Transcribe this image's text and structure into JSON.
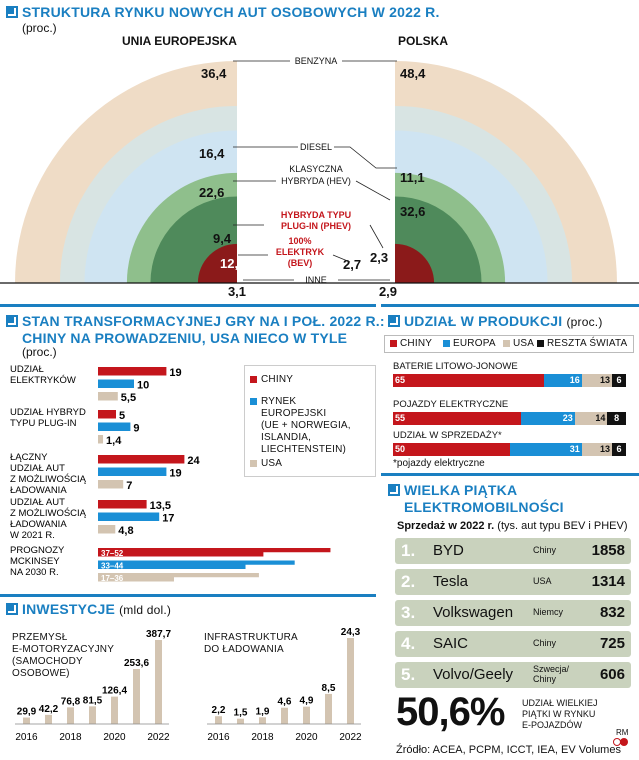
{
  "colors": {
    "accent": "#1a7fc1",
    "china": "#c4161c",
    "europe": "#1a8fd6",
    "usa": "#d3c4b1",
    "rest": "#111111",
    "petrol": "#efdcc6",
    "diesel": "#d8e4e3",
    "hev": "#cfe4f2",
    "phev": "#8fbf8c",
    "bev": "#4f8a5b",
    "other": "#8b1a1a"
  },
  "market": {
    "title": "STRUKTURA RYNKU NOWYCH AUT OSOBOWYCH W 2022 R.",
    "unit": "(proc.)",
    "left_label": "UNIA EUROPEJSKA",
    "right_label": "POLSKA",
    "cat_petrol": "BENZYNA",
    "cat_diesel": "DIESEL",
    "cat_hev_1": "KLASYCZNA",
    "cat_hev_2": "HYBRYDA (HEV)",
    "cat_phev_1": "HYBRYDA TYPU",
    "cat_phev_2": "PLUG-IN (PHEV)",
    "cat_bev_1": "100%",
    "cat_bev_2": "ELEKTRYK",
    "cat_bev_3": "(BEV)",
    "cat_other": "INNE"
  },
  "transform": {
    "title_1": "STAN TRANSFORMACYJNEJ GRY NA I POŁ. 2022 R.:",
    "title_2": "CHINY NA PROWADZENIU, USA NIECO W TYLE",
    "unit": "(proc.)",
    "groups": [
      {
        "label": [
          "UDZIAŁ",
          "ELEKTRYKÓW"
        ]
      },
      {
        "label": [
          "UDZIAŁ HYBRYD",
          "TYPU PLUG-IN"
        ]
      },
      {
        "label": [
          "ŁĄCZNY",
          "UDZIAŁ AUT",
          "Z MOŻLIWOŚCIĄ",
          "ŁADOWANIA"
        ]
      },
      {
        "label": [
          "UDZIAŁ AUT",
          "Z MOŻLIWOŚCIĄ",
          "ŁADOWANIA",
          "W 2021 R."
        ]
      },
      {
        "label": [
          "PROGNOZY",
          "MCKINSEY",
          "NA 2030 R."
        ]
      }
    ],
    "legend_china": "CHINY",
    "legend_eu": [
      "RYNEK",
      "EUROPEJSKI",
      "(UE + NORWEGIA,",
      "ISLANDIA,",
      "LIECHTENSTEIN)"
    ],
    "legend_usa": "USA"
  },
  "production": {
    "title": "UDZIAŁ W PRODUKCJI",
    "unit": "(proc.)",
    "legend": [
      "CHINY",
      "EUROPA",
      "USA",
      "RESZTA ŚWIATA"
    ],
    "rows": [
      {
        "label": "BATERIE LITOWO-JONOWE"
      },
      {
        "label": "POJAZDY ELEKTRYCZNE"
      },
      {
        "label": "UDZIAŁ W SPRZEDAŻY*"
      }
    ],
    "footnote": "*pojazdy elektryczne"
  },
  "top5": {
    "title_1": "WIELKA PIĄTKA",
    "title_2": "ELEKTROMOBILNOŚCI",
    "sales_bold": "Sprzedaż w 2022 r.",
    "sales_rest": "(tys. aut typu BEV i PHEV)",
    "ranks": [
      {
        "n": "1.",
        "name": "BYD",
        "country": "Chiny",
        "value": "1858"
      },
      {
        "n": "2.",
        "name": "Tesla",
        "country": "USA",
        "value": "1314"
      },
      {
        "n": "3.",
        "name": "Volkswagen",
        "country": "Niemcy",
        "value": "832"
      },
      {
        "n": "4.",
        "name": "SAIC",
        "country": "Chiny",
        "value": "725"
      },
      {
        "n": "5.",
        "name": "Volvo/Geely",
        "country": "Szwecja/ Chiny",
        "value": "606"
      }
    ],
    "big_value": "50,6%",
    "big_label": [
      "UDZIAŁ WIELKIEJ",
      "PIĄTKI W RYNKU",
      "E-POJAZDÓW"
    ]
  },
  "invest": {
    "title": "INWESTYCJE",
    "unit": "(mld dol.)",
    "left_label": [
      "PRZEMYSŁ",
      "E-MOTORYZACYJNY",
      "(SAMOCHODY",
      "OSOBOWE)"
    ],
    "right_label": [
      "INFRASTRUKTURA",
      "DO ŁADOWANIA"
    ]
  },
  "source": "Źródło: ACEA, PCPM, ICCT, IEA, EV Volumes",
  "logo": "RM",
  "chart_data": [
    {
      "type": "pie",
      "title": "STRUKTURA RYNKU NOWYCH AUT OSOBOWYCH W 2022 R.",
      "unit": "(proc.)",
      "categories": [
        "BENZYNA",
        "DIESEL",
        "KLASYCZNA HYBRYDA (HEV)",
        "HYBRYDA TYPU PLUG-IN (PHEV)",
        "100% ELEKTRYK (BEV)",
        "INNE"
      ],
      "series": [
        {
          "name": "UNIA EUROPEJSKA",
          "values": [
            36.4,
            16.4,
            22.6,
            9.4,
            12.1,
            3.1
          ],
          "labels": [
            "36,4",
            "16,4",
            "22,6",
            "9,4",
            "12,1",
            "3,1"
          ]
        },
        {
          "name": "POLSKA",
          "values": [
            48.4,
            11.1,
            32.6,
            2.3,
            2.7,
            2.9
          ],
          "labels": [
            "48,4",
            "11,1",
            "32,6",
            "2,3",
            "2,7",
            "2,9"
          ]
        }
      ]
    },
    {
      "type": "bar",
      "title": "STAN TRANSFORMACYJNEJ GRY NA I POŁ. 2022 R.: CHINY NA PROWADZENIU, USA NIECO W TYLE",
      "unit": "(proc.)",
      "categories": [
        "UDZIAŁ ELEKTRYKÓW",
        "UDZIAŁ HYBRYD TYPU PLUG-IN",
        "ŁĄCZNY UDZIAŁ AUT Z MOŻLIWOŚCIĄ ŁADOWANIA",
        "UDZIAŁ AUT Z MOŻLIWOŚCIĄ ŁADOWANIA W 2021 R.",
        "PROGNOZY MCKINSEY NA 2030 R."
      ],
      "series": [
        {
          "name": "CHINY",
          "values": [
            19,
            5,
            24,
            13.5,
            44.5
          ],
          "labels": [
            "19",
            "5",
            "24",
            "13,5",
            "37–52"
          ]
        },
        {
          "name": "RYNEK EUROPEJSKI (UE + NORWEGIA, ISLANDIA, LIECHTENSTEIN)",
          "values": [
            10,
            9,
            19,
            17,
            38.5
          ],
          "labels": [
            "10",
            "9",
            "19",
            "17",
            "33–44"
          ]
        },
        {
          "name": "USA",
          "values": [
            5.5,
            1.4,
            7,
            4.8,
            26.5
          ],
          "labels": [
            "5,5",
            "1,4",
            "7",
            "4,8",
            "17–36"
          ]
        }
      ]
    },
    {
      "type": "bar",
      "title": "UDZIAŁ W PRODUKCJI",
      "unit": "(proc.)",
      "categories": [
        "BATERIE LITOWO-JONOWE",
        "POJAZDY ELEKTRYCZNE",
        "UDZIAŁ W SPRZEDAŻY*"
      ],
      "series": [
        {
          "name": "CHINY",
          "values": [
            65,
            55,
            50
          ]
        },
        {
          "name": "EUROPA",
          "values": [
            16,
            23,
            31
          ]
        },
        {
          "name": "USA",
          "values": [
            13,
            14,
            13
          ]
        },
        {
          "name": "RESZTA ŚWIATA",
          "values": [
            6,
            8,
            6
          ]
        }
      ]
    },
    {
      "type": "bar",
      "title": "INWESTYCJE",
      "unit": "(mld dol.)",
      "categories": [
        "2016",
        "2017",
        "2018",
        "2019",
        "2020",
        "2021",
        "2022"
      ],
      "series": [
        {
          "name": "PRZEMYSŁ E-MOTORYZACYJNY (SAMOCHODY OSOBOWE)",
          "values": [
            29.9,
            42.2,
            76.8,
            81.5,
            126.4,
            253.6,
            387.7
          ],
          "labels": [
            "29,9",
            "42,2",
            "76,8",
            "81,5",
            "126,4",
            "253,6",
            "387,7"
          ]
        },
        {
          "name": "INFRASTRUKTURA DO ŁADOWANIA",
          "values": [
            2.2,
            1.5,
            1.9,
            4.6,
            4.9,
            8.5,
            24.3
          ],
          "labels": [
            "2,2",
            "1,5",
            "1,9",
            "4,6",
            "4,9",
            "8,5",
            "24,3"
          ]
        }
      ],
      "xticks": [
        "2016",
        "2018",
        "2020",
        "2022"
      ]
    }
  ]
}
